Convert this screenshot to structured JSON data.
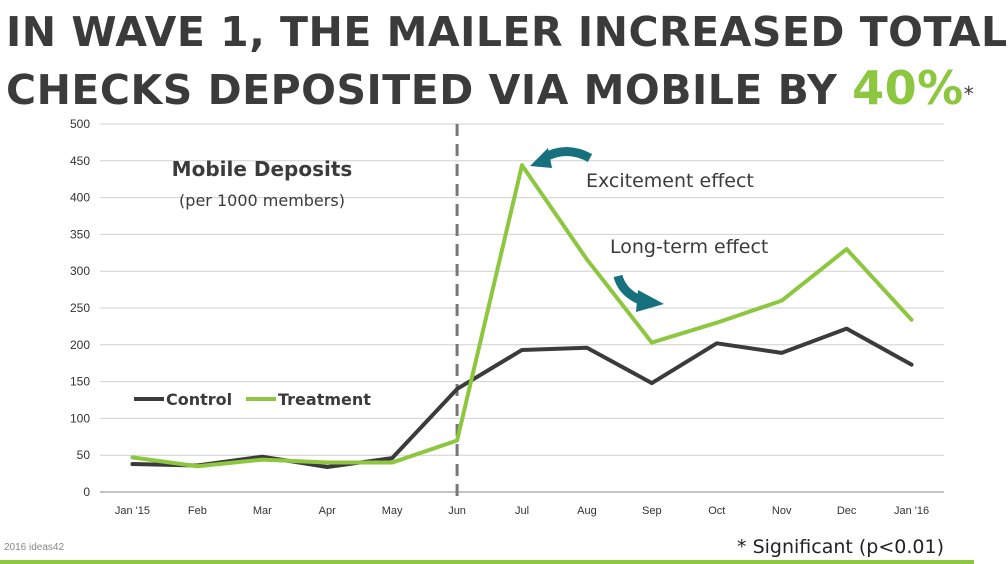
{
  "header": {
    "line1": "IN WAVE 1, THE MAILER INCREASED TOTAL",
    "line2": "CHECKS DEPOSITED VIA MOBILE BY ",
    "highlight": "40%",
    "marker": "*"
  },
  "colors": {
    "control": "#3b3b3b",
    "treatment": "#8dc63f",
    "arrow": "#17707e",
    "grid": "#d0d0d0"
  },
  "footer": {
    "left": "2016 ideas42",
    "right": "* Significant (p<0.01)"
  },
  "chart_data": {
    "type": "line",
    "title": "Mobile Deposits",
    "subtitle": "(per 1000 members)",
    "categories": [
      "Jan '15",
      "Feb",
      "Mar",
      "Apr",
      "May",
      "Jun",
      "Jul",
      "Aug",
      "Sep",
      "Oct",
      "Nov",
      "Dec",
      "Jan '16"
    ],
    "series": [
      {
        "name": "Control",
        "values": [
          38,
          36,
          48,
          34,
          46,
          140,
          193,
          196,
          148,
          202,
          189,
          222,
          173
        ]
      },
      {
        "name": "Treatment",
        "values": [
          47,
          35,
          44,
          40,
          40,
          70,
          444,
          316,
          203,
          230,
          260,
          330,
          234
        ]
      }
    ],
    "ylim": [
      0,
      500
    ],
    "yticks": [
      0,
      50,
      100,
      150,
      200,
      250,
      300,
      350,
      400,
      450,
      500
    ],
    "grid": true,
    "legend_position": "left-middle",
    "reference_line": {
      "at": "Jun",
      "style": "dashed"
    },
    "annotations": [
      {
        "text": "Excitement effect",
        "near": "Jul"
      },
      {
        "text": "Long-term effect",
        "near": "Sep"
      }
    ]
  }
}
